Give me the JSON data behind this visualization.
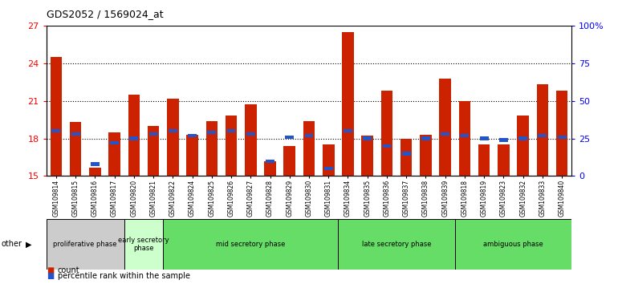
{
  "title": "GDS2052 / 1569024_at",
  "samples": [
    "GSM109814",
    "GSM109815",
    "GSM109816",
    "GSM109817",
    "GSM109820",
    "GSM109821",
    "GSM109822",
    "GSM109824",
    "GSM109825",
    "GSM109826",
    "GSM109827",
    "GSM109828",
    "GSM109829",
    "GSM109830",
    "GSM109831",
    "GSM109834",
    "GSM109835",
    "GSM109836",
    "GSM109837",
    "GSM109838",
    "GSM109839",
    "GSM109818",
    "GSM109819",
    "GSM109823",
    "GSM109832",
    "GSM109833",
    "GSM109840"
  ],
  "count_values": [
    24.5,
    19.3,
    15.7,
    18.5,
    21.5,
    19.0,
    21.2,
    18.3,
    19.4,
    19.8,
    20.7,
    16.2,
    17.4,
    19.4,
    17.5,
    26.5,
    18.2,
    21.8,
    18.0,
    18.3,
    22.8,
    21.0,
    17.5,
    17.5,
    19.8,
    22.3,
    21.8
  ],
  "percentile_pct": [
    30,
    28,
    8,
    22,
    25,
    28,
    30,
    27,
    29,
    30,
    28,
    10,
    26,
    27,
    5,
    30,
    25,
    20,
    15,
    25,
    28,
    27,
    25,
    24,
    25,
    27,
    26
  ],
  "phase_data": [
    {
      "name": "proliferative phase",
      "start": 0,
      "end": 4,
      "color": "#cccccc"
    },
    {
      "name": "early secretory\nphase",
      "start": 4,
      "end": 6,
      "color": "#ccffcc"
    },
    {
      "name": "mid secretory phase",
      "start": 6,
      "end": 15,
      "color": "#66dd66"
    },
    {
      "name": "late secretory phase",
      "start": 15,
      "end": 21,
      "color": "#66dd66"
    },
    {
      "name": "ambiguous phase",
      "start": 21,
      "end": 27,
      "color": "#66dd66"
    }
  ],
  "ylim_left": [
    15,
    27
  ],
  "yticks_left": [
    15,
    18,
    21,
    24,
    27
  ],
  "ytick_labels_left": [
    "15",
    "18",
    "21",
    "24",
    "27"
  ],
  "ylim_right": [
    0,
    100
  ],
  "yticks_right": [
    0,
    25,
    50,
    75,
    100
  ],
  "ytick_labels_right": [
    "0",
    "25",
    "50",
    "75",
    "100%"
  ],
  "bar_color": "#cc2200",
  "percentile_color": "#2255cc",
  "bar_width": 0.6
}
